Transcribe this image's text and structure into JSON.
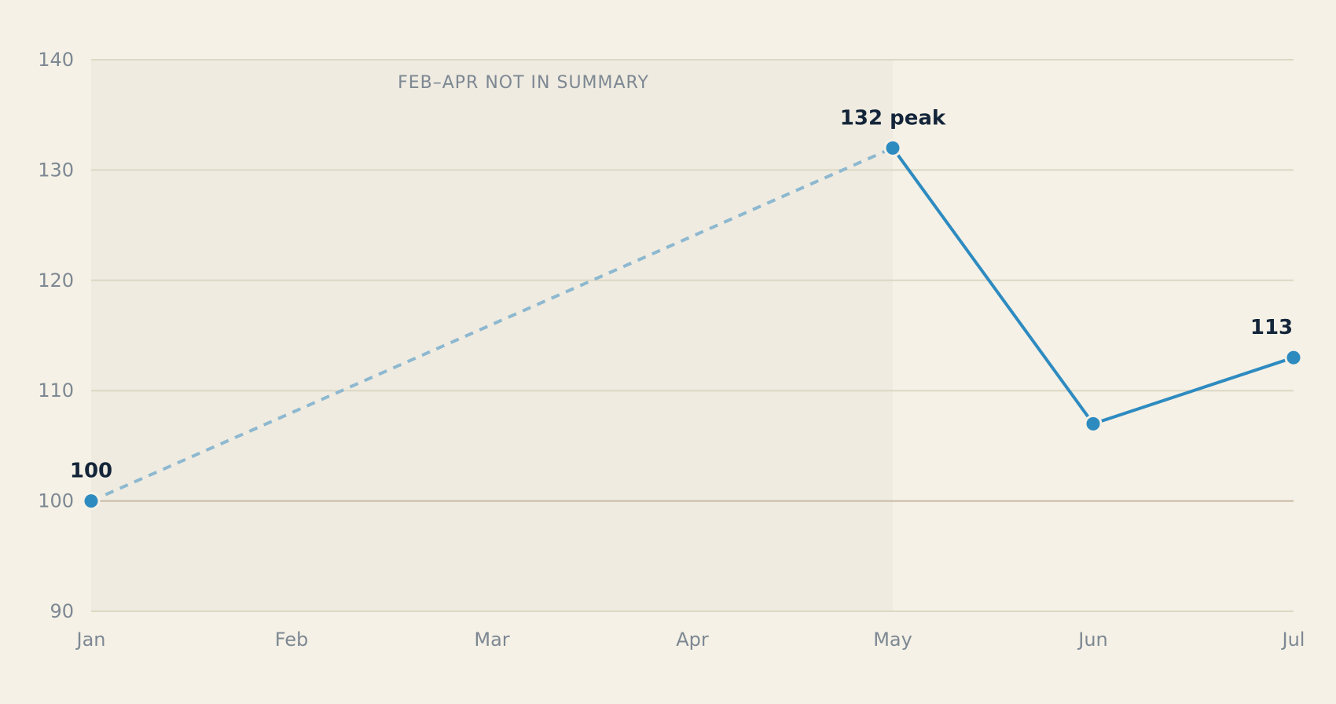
{
  "chart_data": {
    "type": "line",
    "x": [
      "Jan",
      "Feb",
      "Mar",
      "Apr",
      "May",
      "Jun",
      "Jul"
    ],
    "points": [
      {
        "x": "Jan",
        "y": 100,
        "label": "100"
      },
      {
        "x": "May",
        "y": 132,
        "label": "132 peak"
      },
      {
        "x": "Jun",
        "y": 107,
        "label": ""
      },
      {
        "x": "Jul",
        "y": 113,
        "label": "113"
      }
    ],
    "gap": {
      "from": "Jan",
      "to": "May",
      "style": "dashed"
    },
    "shaded_region": {
      "from": "Jan",
      "to": "May",
      "label": "FEB–APR NOT IN SUMMARY"
    },
    "baseline": 100,
    "y_ticks": [
      90,
      100,
      110,
      120,
      130,
      140
    ],
    "ylim": [
      90,
      140
    ],
    "grid": true,
    "title": "",
    "xlabel": "",
    "ylabel": ""
  },
  "colors": {
    "background": "#f5f1e6",
    "shaded_region": "#efebe0",
    "gridline": "#dcd8c3",
    "baseline": "#c8baa4",
    "line": "#2e8bc0",
    "dashed_line": "#8db8d0",
    "tick_text": "#7d8893",
    "label_text": "#14253a"
  }
}
